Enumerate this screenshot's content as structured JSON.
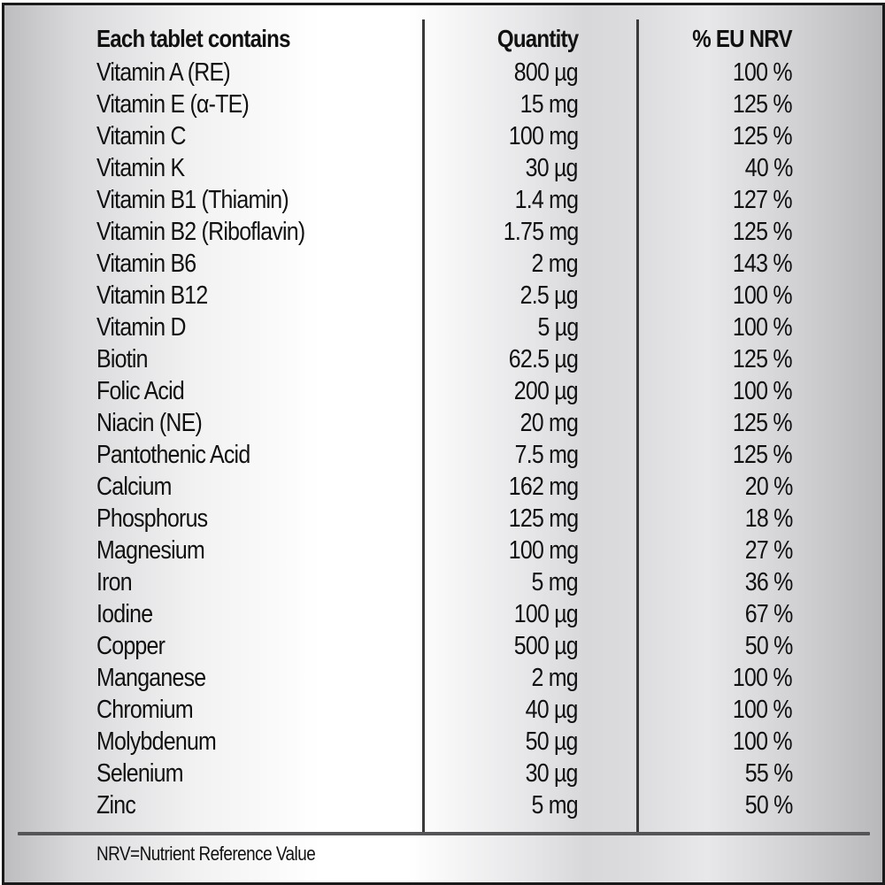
{
  "table": {
    "headers": {
      "nutrient": "Each tablet contains",
      "quantity": "Quantity",
      "nrv": "% EU NRV"
    },
    "rows": [
      {
        "nutrient": "Vitamin A (RE)",
        "quantity": "800 µg",
        "nrv": "100 %"
      },
      {
        "nutrient": "Vitamin E (α-TE)",
        "quantity": "15 mg",
        "nrv": "125 %"
      },
      {
        "nutrient": "Vitamin C",
        "quantity": "100 mg",
        "nrv": "125 %"
      },
      {
        "nutrient": "Vitamin K",
        "quantity": "30 µg",
        "nrv": "40 %"
      },
      {
        "nutrient": "Vitamin B1 (Thiamin)",
        "quantity": "1.4 mg",
        "nrv": "127 %"
      },
      {
        "nutrient": "Vitamin B2 (Riboflavin)",
        "quantity": "1.75 mg",
        "nrv": "125 %"
      },
      {
        "nutrient": "Vitamin B6",
        "quantity": "2 mg",
        "nrv": "143 %"
      },
      {
        "nutrient": "Vitamin B12",
        "quantity": "2.5 µg",
        "nrv": "100 %"
      },
      {
        "nutrient": "Vitamin D",
        "quantity": "5 µg",
        "nrv": "100 %"
      },
      {
        "nutrient": "Biotin",
        "quantity": "62.5 µg",
        "nrv": "125 %"
      },
      {
        "nutrient": "Folic Acid",
        "quantity": "200 µg",
        "nrv": "100 %"
      },
      {
        "nutrient": "Niacin (NE)",
        "quantity": "20 mg",
        "nrv": "125 %"
      },
      {
        "nutrient": "Pantothenic Acid",
        "quantity": "7.5 mg",
        "nrv": "125 %"
      },
      {
        "nutrient": "Calcium",
        "quantity": "162 mg",
        "nrv": "20 %"
      },
      {
        "nutrient": "Phosphorus",
        "quantity": "125 mg",
        "nrv": "18 %"
      },
      {
        "nutrient": "Magnesium",
        "quantity": "100 mg",
        "nrv": "27 %"
      },
      {
        "nutrient": "Iron",
        "quantity": "5 mg",
        "nrv": "36 %"
      },
      {
        "nutrient": "Iodine",
        "quantity": "100 µg",
        "nrv": "67 %"
      },
      {
        "nutrient": "Copper",
        "quantity": "500 µg",
        "nrv": "50 %"
      },
      {
        "nutrient": "Manganese",
        "quantity": "2 mg",
        "nrv": "100 %"
      },
      {
        "nutrient": "Chromium",
        "quantity": "40 µg",
        "nrv": "100 %"
      },
      {
        "nutrient": "Molybdenum",
        "quantity": "50 µg",
        "nrv": "100 %"
      },
      {
        "nutrient": "Selenium",
        "quantity": "30 µg",
        "nrv": "55 %"
      },
      {
        "nutrient": "Zinc",
        "quantity": "5 mg",
        "nrv": "50 %"
      }
    ]
  },
  "footnote": "NRV=Nutrient Reference Value",
  "colors": {
    "border": "#1a1a1a",
    "divider": "#3a3a3a",
    "text": "#111111"
  }
}
